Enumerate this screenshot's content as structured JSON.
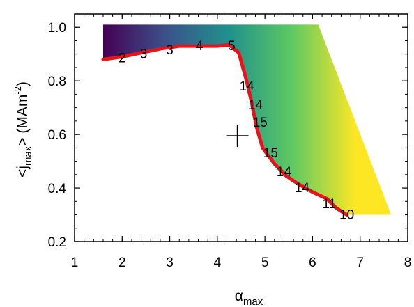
{
  "chart_data": {
    "type": "area",
    "xlabel": {
      "main": "α",
      "sub": "max"
    },
    "ylabel": {
      "prefix": "<j",
      "sub": "max",
      "mid": "> (MAm",
      "sup": "-2",
      "suffix": ")"
    },
    "xlim": [
      1,
      8
    ],
    "ylim": [
      0.2,
      1.05
    ],
    "xticks": [
      1,
      2,
      3,
      4,
      5,
      6,
      7,
      8
    ],
    "yticks": [
      0.2,
      0.4,
      0.6,
      0.8,
      1.0
    ],
    "ytick_labels": [
      "0.2",
      "0.4",
      "0.6",
      "0.8",
      "1.0"
    ],
    "colormap": [
      "#440154",
      "#3b528b",
      "#21918c",
      "#5ec962",
      "#fde725"
    ],
    "boundary_color": "#e8141b",
    "region_top": [
      [
        1.6,
        1.01
      ],
      [
        6.12,
        1.01
      ],
      [
        7.65,
        0.3
      ]
    ],
    "boundary_curve": [
      [
        1.6,
        0.88
      ],
      [
        2.0,
        0.89
      ],
      [
        2.4,
        0.905
      ],
      [
        2.8,
        0.92
      ],
      [
        3.2,
        0.93
      ],
      [
        3.6,
        0.93
      ],
      [
        4.0,
        0.93
      ],
      [
        4.25,
        0.935
      ],
      [
        4.45,
        0.905
      ],
      [
        4.6,
        0.81
      ],
      [
        4.72,
        0.72
      ],
      [
        4.82,
        0.63
      ],
      [
        4.95,
        0.55
      ],
      [
        5.2,
        0.49
      ],
      [
        5.45,
        0.445
      ],
      [
        5.7,
        0.415
      ],
      [
        6.0,
        0.385
      ],
      [
        6.3,
        0.36
      ],
      [
        6.5,
        0.325
      ],
      [
        6.72,
        0.3
      ],
      [
        7.65,
        0.3
      ]
    ],
    "marker": {
      "x": 4.42,
      "y": 0.595,
      "symbol": "+"
    },
    "contour_labels": [
      {
        "text": "2",
        "x": 2.0,
        "y": 0.885
      },
      {
        "text": "3",
        "x": 2.45,
        "y": 0.9
      },
      {
        "text": "3",
        "x": 3.0,
        "y": 0.915
      },
      {
        "text": "4",
        "x": 3.62,
        "y": 0.93
      },
      {
        "text": "5",
        "x": 4.3,
        "y": 0.93
      },
      {
        "text": "14",
        "x": 4.62,
        "y": 0.78
      },
      {
        "text": "14",
        "x": 4.8,
        "y": 0.71
      },
      {
        "text": "15",
        "x": 4.9,
        "y": 0.645
      },
      {
        "text": "15",
        "x": 5.12,
        "y": 0.53
      },
      {
        "text": "14",
        "x": 5.4,
        "y": 0.46
      },
      {
        "text": "14",
        "x": 5.78,
        "y": 0.4
      },
      {
        "text": "11",
        "x": 6.35,
        "y": 0.34
      },
      {
        "text": "10",
        "x": 6.72,
        "y": 0.3
      }
    ]
  }
}
